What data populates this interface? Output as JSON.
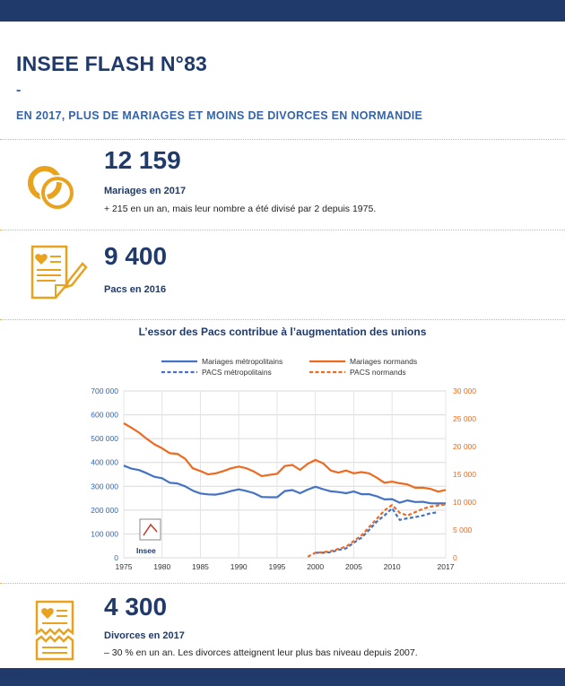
{
  "header": {
    "title": "INSEE FLASH N°83",
    "dash": "-",
    "subtitle": "EN 2017, PLUS DE MARIAGES ET MOINS DE DIVORCES EN NORMANDIE"
  },
  "stats": {
    "mariages": {
      "value": "12 159",
      "label": "Mariages en 2017",
      "desc": "+ 215 en un an, mais leur nombre a été divisé par 2 depuis 1975.",
      "icon": "rings-icon"
    },
    "pacs": {
      "value": "9 400",
      "label": "Pacs en 2016",
      "icon": "document-heart-icon"
    },
    "divorces": {
      "value": "4 300",
      "label": "Divorces en 2017",
      "desc": "– 30 % en un an. Les divorces atteignent leur plus bas niveau depuis 2007.",
      "icon": "torn-document-heart-icon"
    }
  },
  "colors": {
    "navy": "#1f3a6b",
    "blue": "#4472c4",
    "orange": "#ed6a1f",
    "gold": "#e8a21e"
  },
  "chart_data": {
    "type": "line",
    "title": "L’essor des Pacs contribue à l’augmentation des unions",
    "x_ticks": [
      1975,
      1980,
      1985,
      1990,
      1995,
      2000,
      2005,
      2010,
      2017
    ],
    "xlim": [
      1975,
      2017
    ],
    "y_left_ticks": [
      "0",
      "100 000",
      "200 000",
      "300 000",
      "400 000",
      "500 000",
      "600 000",
      "700 000"
    ],
    "ylim_left": [
      0,
      700000
    ],
    "y_right_ticks": [
      "0",
      "5 000",
      "10 000",
      "15 000",
      "20 000",
      "25 000",
      "30 000"
    ],
    "ylim_right": [
      0,
      30000
    ],
    "grid": true,
    "legend_position": "top",
    "logo_text": "Insee",
    "series": [
      {
        "name": "Mariages métropolitains",
        "axis": "left",
        "style": "solid",
        "color": "#4472c4",
        "x": [
          1975,
          1976,
          1977,
          1978,
          1979,
          1980,
          1981,
          1982,
          1983,
          1984,
          1985,
          1986,
          1987,
          1988,
          1989,
          1990,
          1991,
          1992,
          1993,
          1994,
          1995,
          1996,
          1997,
          1998,
          1999,
          2000,
          2001,
          2002,
          2003,
          2004,
          2005,
          2006,
          2007,
          2008,
          2009,
          2010,
          2011,
          2012,
          2013,
          2014,
          2015,
          2016,
          2017
        ],
        "y": [
          387000,
          374000,
          368000,
          355000,
          340000,
          334000,
          315000,
          312000,
          300000,
          282000,
          270000,
          266000,
          265000,
          271000,
          280000,
          287000,
          280000,
          271000,
          255000,
          254000,
          254000,
          280000,
          284000,
          271000,
          286000,
          298000,
          288000,
          279000,
          276000,
          271000,
          278000,
          267000,
          267000,
          258000,
          245000,
          246000,
          231000,
          241000,
          234000,
          235000,
          229000,
          228000,
          228000
        ]
      },
      {
        "name": "Mariages normands",
        "axis": "right",
        "style": "solid",
        "color": "#ed6a1f",
        "x": [
          1975,
          1976,
          1977,
          1978,
          1979,
          1980,
          1981,
          1982,
          1983,
          1984,
          1985,
          1986,
          1987,
          1988,
          1989,
          1990,
          1991,
          1992,
          1993,
          1994,
          1995,
          1996,
          1997,
          1998,
          1999,
          2000,
          2001,
          2002,
          2003,
          2004,
          2005,
          2006,
          2007,
          2008,
          2009,
          2010,
          2011,
          2012,
          2013,
          2014,
          2015,
          2016,
          2017
        ],
        "y": [
          24200,
          23400,
          22500,
          21400,
          20400,
          19700,
          18800,
          18700,
          17800,
          16100,
          15600,
          15000,
          15200,
          15600,
          16100,
          16400,
          16100,
          15500,
          14700,
          14900,
          15100,
          16500,
          16700,
          15800,
          16900,
          17600,
          17000,
          15700,
          15300,
          15700,
          15200,
          15400,
          15200,
          14400,
          13500,
          13700,
          13400,
          13200,
          12600,
          12600,
          12400,
          11900,
          12200
        ]
      },
      {
        "name": "PACS métropolitains",
        "axis": "right",
        "style": "dashed",
        "color": "#4472c4",
        "x": [
          2000,
          2001,
          2002,
          2003,
          2004,
          2005,
          2006,
          2007,
          2008,
          2009,
          2010,
          2011,
          2012,
          2013,
          2014,
          2015,
          2016
        ],
        "y": [
          900,
          900,
          1000,
          1400,
          1700,
          2700,
          3600,
          5000,
          6500,
          7600,
          8900,
          6800,
          7100,
          7300,
          7600,
          8000,
          8200
        ]
      },
      {
        "name": "PACS normands",
        "axis": "right",
        "style": "dashed",
        "color": "#ed6a1f",
        "x": [
          1999,
          2000,
          2001,
          2002,
          2003,
          2004,
          2005,
          2006,
          2007,
          2008,
          2009,
          2010,
          2011,
          2012,
          2013,
          2014,
          2015,
          2016,
          2017
        ],
        "y": [
          200,
          900,
          1000,
          1200,
          1600,
          2000,
          3000,
          4000,
          5500,
          7000,
          8500,
          9500,
          8100,
          7600,
          8200,
          8800,
          9200,
          9400,
          9600
        ]
      }
    ]
  }
}
